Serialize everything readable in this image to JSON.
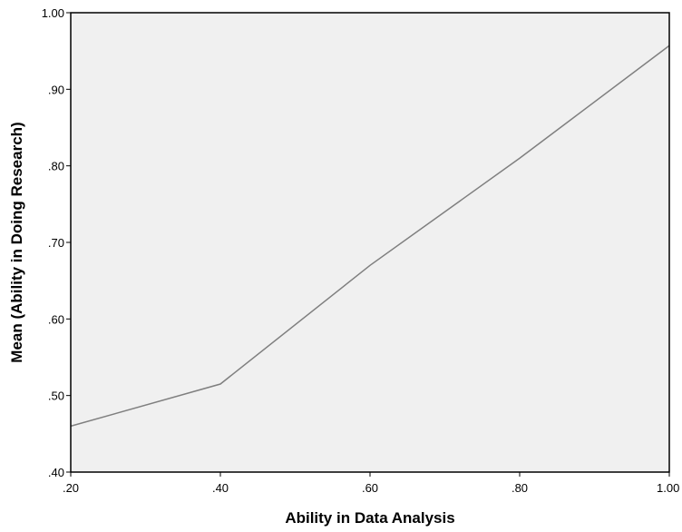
{
  "chart_data": {
    "type": "line",
    "title": "",
    "xlabel": "Ability in Data Analysis",
    "ylabel": "Mean (Ability in Doing Research)",
    "xlim": [
      0.2,
      1.0
    ],
    "ylim": [
      0.4,
      1.0
    ],
    "x_tick_labels": [
      ".20",
      ".40",
      ".60",
      ".80",
      "1.00"
    ],
    "y_tick_labels": [
      ".40",
      ".50",
      ".60",
      ".70",
      ".80",
      ".90",
      "1.00"
    ],
    "x_ticks": [
      0.2,
      0.4,
      0.6,
      0.8,
      1.0
    ],
    "y_ticks": [
      0.4,
      0.5,
      0.6,
      0.7,
      0.8,
      0.9,
      1.0
    ],
    "series": [
      {
        "x": [
          0.2,
          0.4,
          0.6,
          0.8,
          1.0
        ],
        "values": [
          0.46,
          0.515,
          0.67,
          0.81,
          0.957
        ]
      }
    ],
    "grid": false,
    "colors": {
      "plot_background": "#f0f0f0",
      "line": "#7f7f7f",
      "axis": "#000000"
    }
  }
}
